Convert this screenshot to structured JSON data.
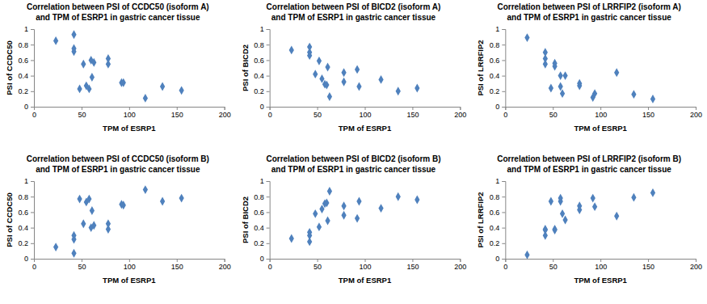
{
  "chart_data": [
    {
      "type": "scatter",
      "title": [
        "Correlation between PSI of CCDC50 (isoform A)",
        "and TPM of ESRP1 in gastric cancer tissue"
      ],
      "x_label": "TPM of ESRP1",
      "y_label": "PSI of CCDC50",
      "color": "#4f81bd",
      "marker": "diamond",
      "x": [
        23,
        42,
        42,
        42,
        48,
        52,
        55,
        58,
        60,
        61,
        63,
        78,
        78,
        92,
        94,
        117,
        135,
        155
      ],
      "values": [
        0.85,
        0.93,
        0.75,
        0.71,
        0.23,
        0.55,
        0.27,
        0.23,
        0.6,
        0.38,
        0.57,
        0.62,
        0.55,
        0.31,
        0.31,
        0.11,
        0.26,
        0.21
      ],
      "xlim": [
        0,
        200
      ],
      "xticks": [
        0,
        50,
        100,
        150,
        200
      ],
      "ylim": [
        0,
        1
      ],
      "yticks": [
        0,
        0.2,
        0.4,
        0.6,
        0.8,
        1
      ]
    },
    {
      "type": "scatter",
      "title": [
        "Correlation between PSI of BICD2 (isoform A)",
        "and TPM of ESRP1 in gastric cancer tissue"
      ],
      "x_label": "TPM of ESRP1",
      "y_label": "PSI of BICD2",
      "color": "#4f81bd",
      "marker": "diamond",
      "x": [
        23,
        42,
        42,
        42,
        48,
        52,
        55,
        58,
        60,
        61,
        63,
        78,
        78,
        92,
        94,
        117,
        135,
        155
      ],
      "values": [
        0.73,
        0.77,
        0.7,
        0.66,
        0.42,
        0.59,
        0.36,
        0.29,
        0.28,
        0.51,
        0.13,
        0.44,
        0.32,
        0.48,
        0.26,
        0.35,
        0.2,
        0.24
      ],
      "xlim": [
        0,
        200
      ],
      "xticks": [
        0,
        50,
        100,
        150,
        200
      ],
      "ylim": [
        0,
        1
      ],
      "yticks": [
        0,
        0.2,
        0.4,
        0.6,
        0.8,
        1
      ]
    },
    {
      "type": "scatter",
      "title": [
        "Correlation between PSI of LRRFIP2 (isoform A)",
        "and TPM of ESRP1 in gastric cancer tissue"
      ],
      "x_label": "TPM of ESRP1",
      "y_label": "PSI of LRRFIP2",
      "color": "#4f81bd",
      "marker": "diamond",
      "x": [
        23,
        42,
        42,
        42,
        48,
        52,
        52,
        58,
        58,
        60,
        63,
        78,
        78,
        92,
        94,
        117,
        135,
        155
      ],
      "values": [
        0.89,
        0.7,
        0.62,
        0.55,
        0.24,
        0.56,
        0.52,
        0.4,
        0.26,
        0.17,
        0.4,
        0.3,
        0.27,
        0.12,
        0.17,
        0.44,
        0.16,
        0.1
      ],
      "xlim": [
        0,
        200
      ],
      "xticks": [
        0,
        50,
        100,
        150,
        200
      ],
      "ylim": [
        0,
        1
      ],
      "yticks": [
        0,
        0.2,
        0.4,
        0.6,
        0.8,
        1
      ]
    },
    {
      "type": "scatter",
      "title": [
        "Correlation between PSI of CCDC50 (isoform B)",
        "and TPM of ESRP1 in gastric cancer tissue"
      ],
      "x_label": "TPM of ESRP1",
      "y_label": "PSI of CCDC50",
      "color": "#4f81bd",
      "marker": "diamond",
      "x": [
        23,
        42,
        42,
        42,
        48,
        52,
        55,
        58,
        60,
        61,
        63,
        78,
        78,
        92,
        94,
        117,
        135,
        155
      ],
      "values": [
        0.15,
        0.07,
        0.25,
        0.3,
        0.77,
        0.45,
        0.73,
        0.77,
        0.4,
        0.62,
        0.43,
        0.38,
        0.45,
        0.7,
        0.69,
        0.89,
        0.74,
        0.78
      ],
      "xlim": [
        0,
        200
      ],
      "xticks": [
        0,
        50,
        100,
        150,
        200
      ],
      "ylim": [
        0,
        1
      ],
      "yticks": [
        0,
        0.2,
        0.4,
        0.6,
        0.8,
        1
      ]
    },
    {
      "type": "scatter",
      "title": [
        "Correlation between PSI of BICD2 (isoform B)",
        "and TPM of ESRP1 in gastric cancer tissue"
      ],
      "x_label": "TPM of ESRP1",
      "y_label": "PSI of BICD2",
      "color": "#4f81bd",
      "marker": "diamond",
      "x": [
        23,
        42,
        42,
        42,
        48,
        52,
        55,
        58,
        60,
        61,
        63,
        78,
        78,
        92,
        94,
        117,
        135,
        155
      ],
      "values": [
        0.26,
        0.22,
        0.3,
        0.34,
        0.58,
        0.41,
        0.64,
        0.71,
        0.72,
        0.49,
        0.87,
        0.56,
        0.68,
        0.52,
        0.74,
        0.65,
        0.8,
        0.76
      ],
      "xlim": [
        0,
        200
      ],
      "xticks": [
        0,
        50,
        100,
        150,
        200
      ],
      "ylim": [
        0,
        1
      ],
      "yticks": [
        0,
        0.2,
        0.4,
        0.6,
        0.8,
        1
      ]
    },
    {
      "type": "scatter",
      "title": [
        "Correlation between PSI of LRRFIP2 (isoform B)",
        "and TPM of ESRP1 in gastric cancer tissue"
      ],
      "x_label": "TPM of ESRP1",
      "y_label": "PSI of LRRFIP2",
      "color": "#4f81bd",
      "marker": "diamond",
      "x": [
        23,
        42,
        42,
        42,
        48,
        52,
        52,
        58,
        58,
        60,
        63,
        78,
        78,
        92,
        94,
        117,
        135,
        155
      ],
      "values": [
        0.05,
        0.3,
        0.38,
        0.37,
        0.74,
        0.38,
        0.37,
        0.74,
        0.78,
        0.58,
        0.5,
        0.68,
        0.63,
        0.78,
        0.67,
        0.55,
        0.79,
        0.85
      ],
      "xlim": [
        0,
        200
      ],
      "xticks": [
        0,
        50,
        100,
        150,
        200
      ],
      "ylim": [
        0,
        1
      ],
      "yticks": [
        0,
        0.2,
        0.4,
        0.6,
        0.8,
        1
      ]
    }
  ]
}
